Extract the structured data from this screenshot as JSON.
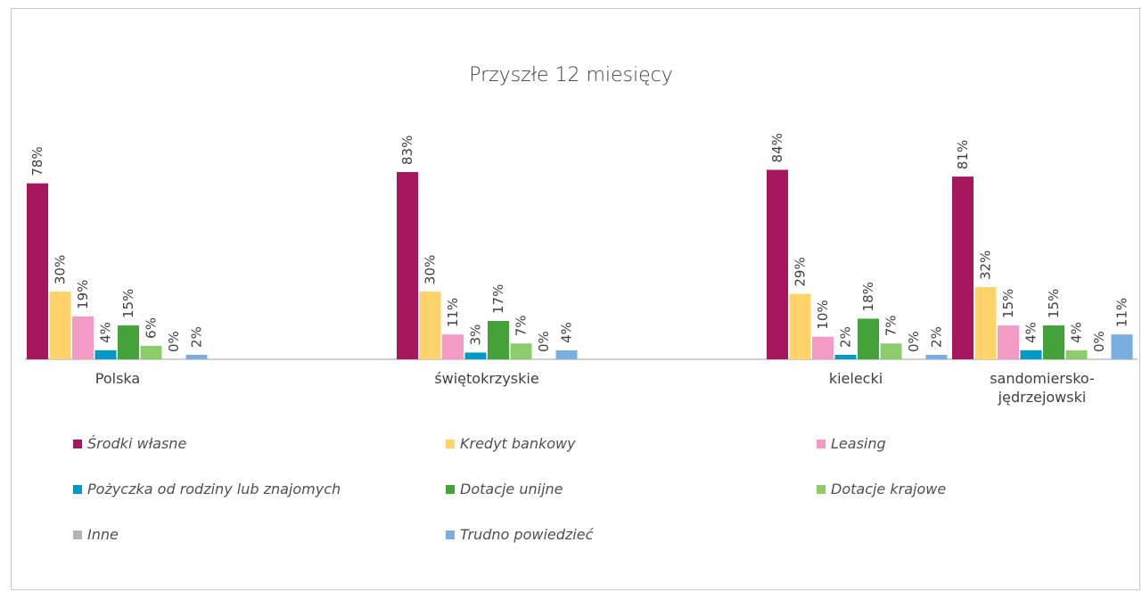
{
  "chart_data": {
    "type": "bar",
    "title": "Przyszłe 12 miesięcy",
    "categories": [
      "Polska",
      "świętokrzyskie",
      "kielecki",
      "sandomiersko-\njędrzejowski"
    ],
    "ylim": [
      0,
      100
    ],
    "series": [
      {
        "name": "Środki własne",
        "color": "#a6175f",
        "values": [
          78,
          83,
          84,
          81
        ]
      },
      {
        "name": "Kredyt bankowy",
        "color": "#ffd36a",
        "values": [
          30,
          30,
          29,
          32
        ]
      },
      {
        "name": "Leasing",
        "color": "#f39bc5",
        "values": [
          19,
          11,
          10,
          15
        ]
      },
      {
        "name": "Pożyczka od rodziny lub znajomych",
        "color": "#0099c7",
        "values": [
          4,
          3,
          2,
          4
        ]
      },
      {
        "name": "Dotacje unijne",
        "color": "#44a23a",
        "values": [
          15,
          17,
          18,
          15
        ]
      },
      {
        "name": "Dotacje krajowe",
        "color": "#8ccc6a",
        "values": [
          6,
          7,
          7,
          4
        ]
      },
      {
        "name": "Inne",
        "color": "#b3b3b3",
        "values": [
          0,
          0,
          0,
          0
        ]
      },
      {
        "name": "Trudno powiedzieć",
        "color": "#78aee0",
        "values": [
          2,
          4,
          2,
          11
        ]
      }
    ],
    "value_suffix": "%",
    "legend_position": "bottom"
  }
}
